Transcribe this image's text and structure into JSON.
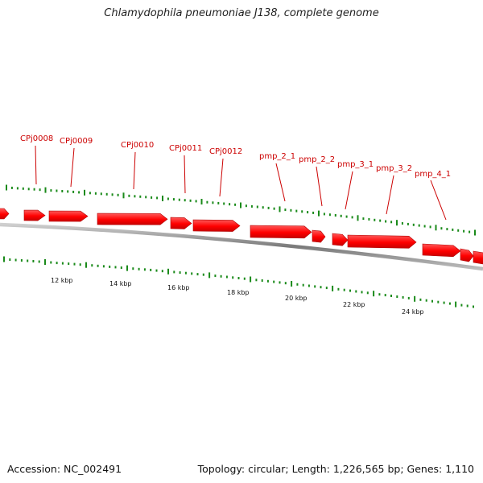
{
  "title": "Chlamydophila pneumoniae J138, complete genome",
  "footer": {
    "accession": "Accession: NC_002491",
    "summary": "Topology: circular; Length: 1,226,565 bp; Genes: 1,110"
  },
  "colors": {
    "gene": "#ff0000",
    "gene_label": "#cc0000",
    "tick": "#1a8a1a",
    "backbone": "#808080"
  },
  "gene_labels": [
    "CPj0008",
    "CPj0009",
    "CPj0010",
    "CPj0011",
    "CPj0012",
    "pmp_2_1",
    "pmp_2_2",
    "pmp_3_1",
    "pmp_3_2",
    "pmp_4_1"
  ],
  "scale_labels": [
    "12 kbp",
    "14 kbp",
    "16 kbp",
    "18 kbp",
    "20 kbp",
    "22 kbp",
    "24 kbp"
  ]
}
